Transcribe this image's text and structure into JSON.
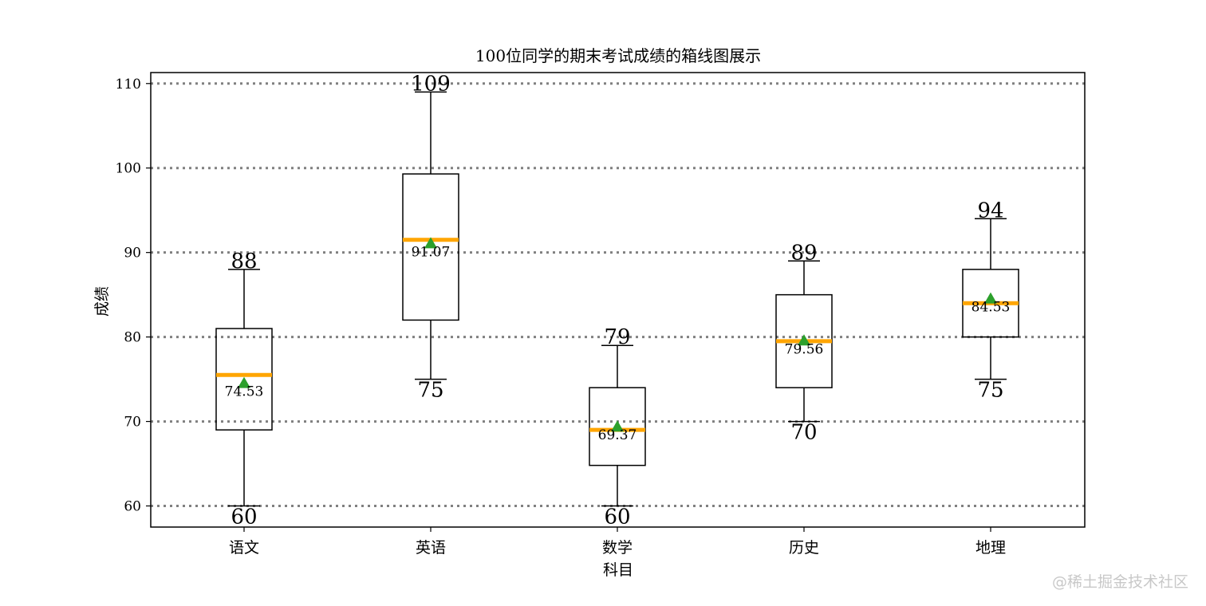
{
  "chart_data": {
    "type": "box",
    "title": "100位同学的期末考试成绩的箱线图展示",
    "xlabel": "科目",
    "ylabel": "成绩",
    "ylim": [
      57.5,
      111.3
    ],
    "yticks": [
      60,
      70,
      80,
      90,
      100,
      110
    ],
    "grid": "horizontal dotted",
    "colors": {
      "median": "#ffa500",
      "mean_marker": "#2ca02c",
      "grid": "#808080",
      "box": "#000000"
    },
    "categories": [
      "语文",
      "英语",
      "数学",
      "历史",
      "地理"
    ],
    "boxes": [
      {
        "category": "语文",
        "whisker_low": 60,
        "q1": 69,
        "median": 75.5,
        "q3": 81,
        "whisker_high": 88,
        "mean": 74.53
      },
      {
        "category": "英语",
        "whisker_low": 75,
        "q1": 82,
        "median": 91.5,
        "q3": 99.3,
        "whisker_high": 109,
        "mean": 91.07
      },
      {
        "category": "数学",
        "whisker_low": 60,
        "q1": 64.8,
        "median": 69,
        "q3": 74,
        "whisker_high": 79,
        "mean": 69.37
      },
      {
        "category": "历史",
        "whisker_low": 70,
        "q1": 74,
        "median": 79.5,
        "q3": 85,
        "whisker_high": 89,
        "mean": 79.56
      },
      {
        "category": "地理",
        "whisker_low": 75,
        "q1": 80,
        "median": 84,
        "q3": 88,
        "whisker_high": 94,
        "mean": 84.53
      }
    ],
    "whisker_labels": [
      {
        "low": "60",
        "high": "88"
      },
      {
        "low": "75",
        "high": "109"
      },
      {
        "low": "60",
        "high": "79"
      },
      {
        "low": "70",
        "high": "89"
      },
      {
        "low": "75",
        "high": "94"
      }
    ],
    "mean_labels": [
      "74.53",
      "91.07",
      "69.37",
      "79.56",
      "84.53"
    ]
  },
  "watermark": "@稀土掘金技术社区"
}
